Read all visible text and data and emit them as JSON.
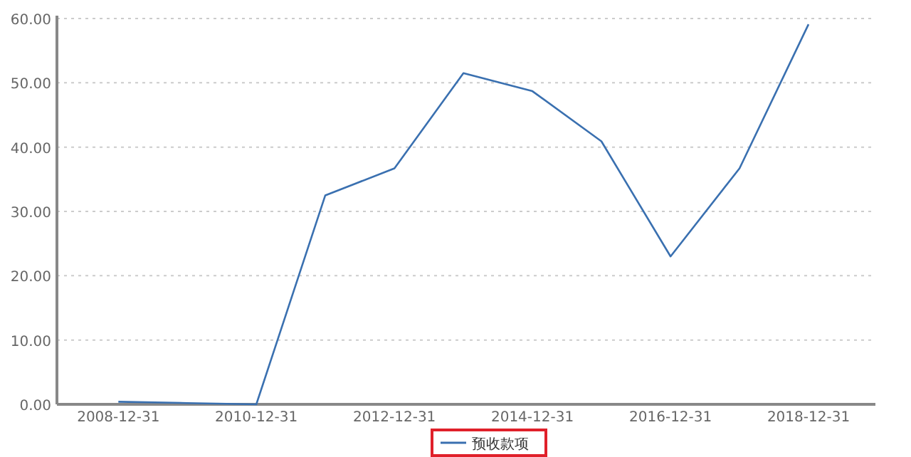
{
  "chart_data": {
    "type": "line",
    "x": [
      "2008-12-31",
      "2009-12-31",
      "2010-12-31",
      "2011-12-31",
      "2012-12-31",
      "2013-12-31",
      "2014-12-31",
      "2015-12-31",
      "2016-12-31",
      "2017-12-31",
      "2018-12-31"
    ],
    "series": [
      {
        "name": "预收款项",
        "color": "#3a70b0",
        "values": [
          0.4,
          0.2,
          0,
          32.5,
          36.7,
          51.5,
          48.7,
          40.9,
          23.0,
          36.7,
          59.1
        ]
      }
    ],
    "xlim": [
      "2008-02-10",
      "2019-12-20"
    ],
    "xticks": [
      {
        "value": "2008-12-31",
        "label": "2008-12-31"
      },
      {
        "value": "2010-12-31",
        "label": "2010-12-31"
      },
      {
        "value": "2012-12-31",
        "label": "2012-12-31"
      },
      {
        "value": "2014-12-31",
        "label": "2014-12-31"
      },
      {
        "value": "2016-12-31",
        "label": "2016-12-31"
      },
      {
        "value": "2018-12-31",
        "label": "2018-12-31"
      }
    ],
    "ylim": [
      0,
      60
    ],
    "yticks": [
      {
        "value": 0,
        "label": "0.00"
      },
      {
        "value": 10,
        "label": "10.00"
      },
      {
        "value": 20,
        "label": "20.00"
      },
      {
        "value": 30,
        "label": "30.00"
      },
      {
        "value": 40,
        "label": "40.00"
      },
      {
        "value": 50,
        "label": "50.00"
      },
      {
        "value": 60,
        "label": "60.00"
      }
    ],
    "grid": "y",
    "legend": "bottom",
    "marker": "none",
    "line_style": "solid"
  }
}
